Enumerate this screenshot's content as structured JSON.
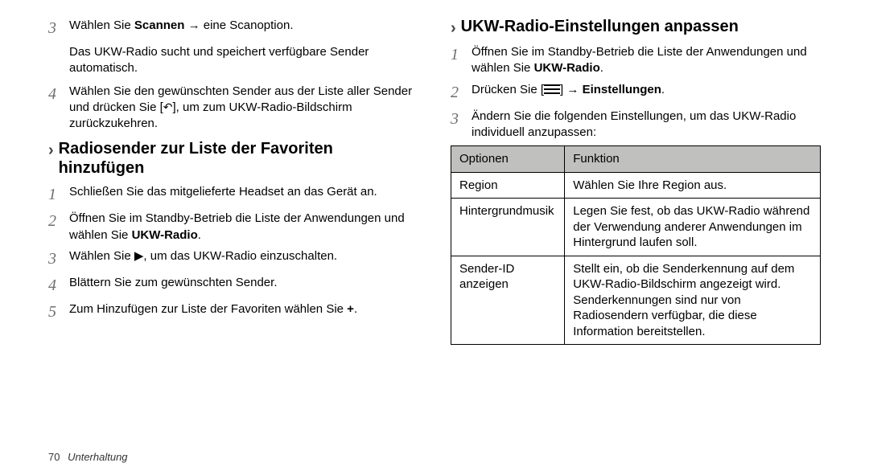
{
  "left": {
    "step3": {
      "pre": "Wählen Sie ",
      "bold": "Scannen",
      "post": " → eine Scanoption.",
      "sub": "Das UKW-Radio sucht und speichert verfügbare Sender automatisch."
    },
    "step4": {
      "pre": "Wählen Sie den gewünschten Sender aus der Liste aller Sender und drücken Sie [",
      "post": "], um zum UKW-Radio-Bildschirm zurückzukehren."
    },
    "heading": "Radiosender zur Liste der Favoriten hinzufügen",
    "fav": {
      "s1": "Schließen Sie das mitgelieferte Headset an das Gerät an.",
      "s2_pre": "Öffnen Sie im Standby-Betrieb die Liste der Anwendungen und wählen Sie ",
      "s2_bold": "UKW-Radio",
      "s2_post": ".",
      "s3_pre": "Wählen Sie ",
      "s3_post": ", um das UKW-Radio einzuschalten.",
      "s4": "Blättern Sie zum gewünschten Sender.",
      "s5_pre": "Zum Hinzufügen zur Liste der Favoriten wählen Sie ",
      "s5_bold": "+",
      "s5_post": "."
    }
  },
  "right": {
    "heading": "UKW-Radio-Einstellungen anpassen",
    "s1_pre": "Öffnen Sie im Standby-Betrieb die Liste der Anwendungen und wählen Sie ",
    "s1_bold": "UKW-Radio",
    "s1_post": ".",
    "s2_pre": "Drücken Sie [",
    "s2_mid": "] → ",
    "s2_bold": "Einstellungen",
    "s2_post": ".",
    "s3": "Ändern Sie die folgenden Einstellungen, um das UKW-Radio individuell anzupassen:",
    "table": {
      "head": [
        "Optionen",
        "Funktion"
      ],
      "rows": [
        [
          "Region",
          "Wählen Sie Ihre Region aus."
        ],
        [
          "Hintergrundmusik",
          "Legen Sie fest, ob das UKW-Radio während der Verwendung anderer Anwendungen im Hintergrund laufen soll."
        ],
        [
          "Sender-ID anzeigen",
          "Stellt ein, ob die Senderkennung auf dem UKW-Radio-Bildschirm angezeigt wird. Senderkennungen sind nur von Radiosendern verfügbar, die diese Information bereitstellen."
        ]
      ]
    }
  },
  "footer": {
    "page": "70",
    "section": "Unterhaltung"
  },
  "nums": {
    "n1": "1",
    "n2": "2",
    "n3": "3",
    "n4": "4",
    "n5": "5"
  },
  "glyphs": {
    "headarrow": "›",
    "play": "▶",
    "back": "↶"
  }
}
